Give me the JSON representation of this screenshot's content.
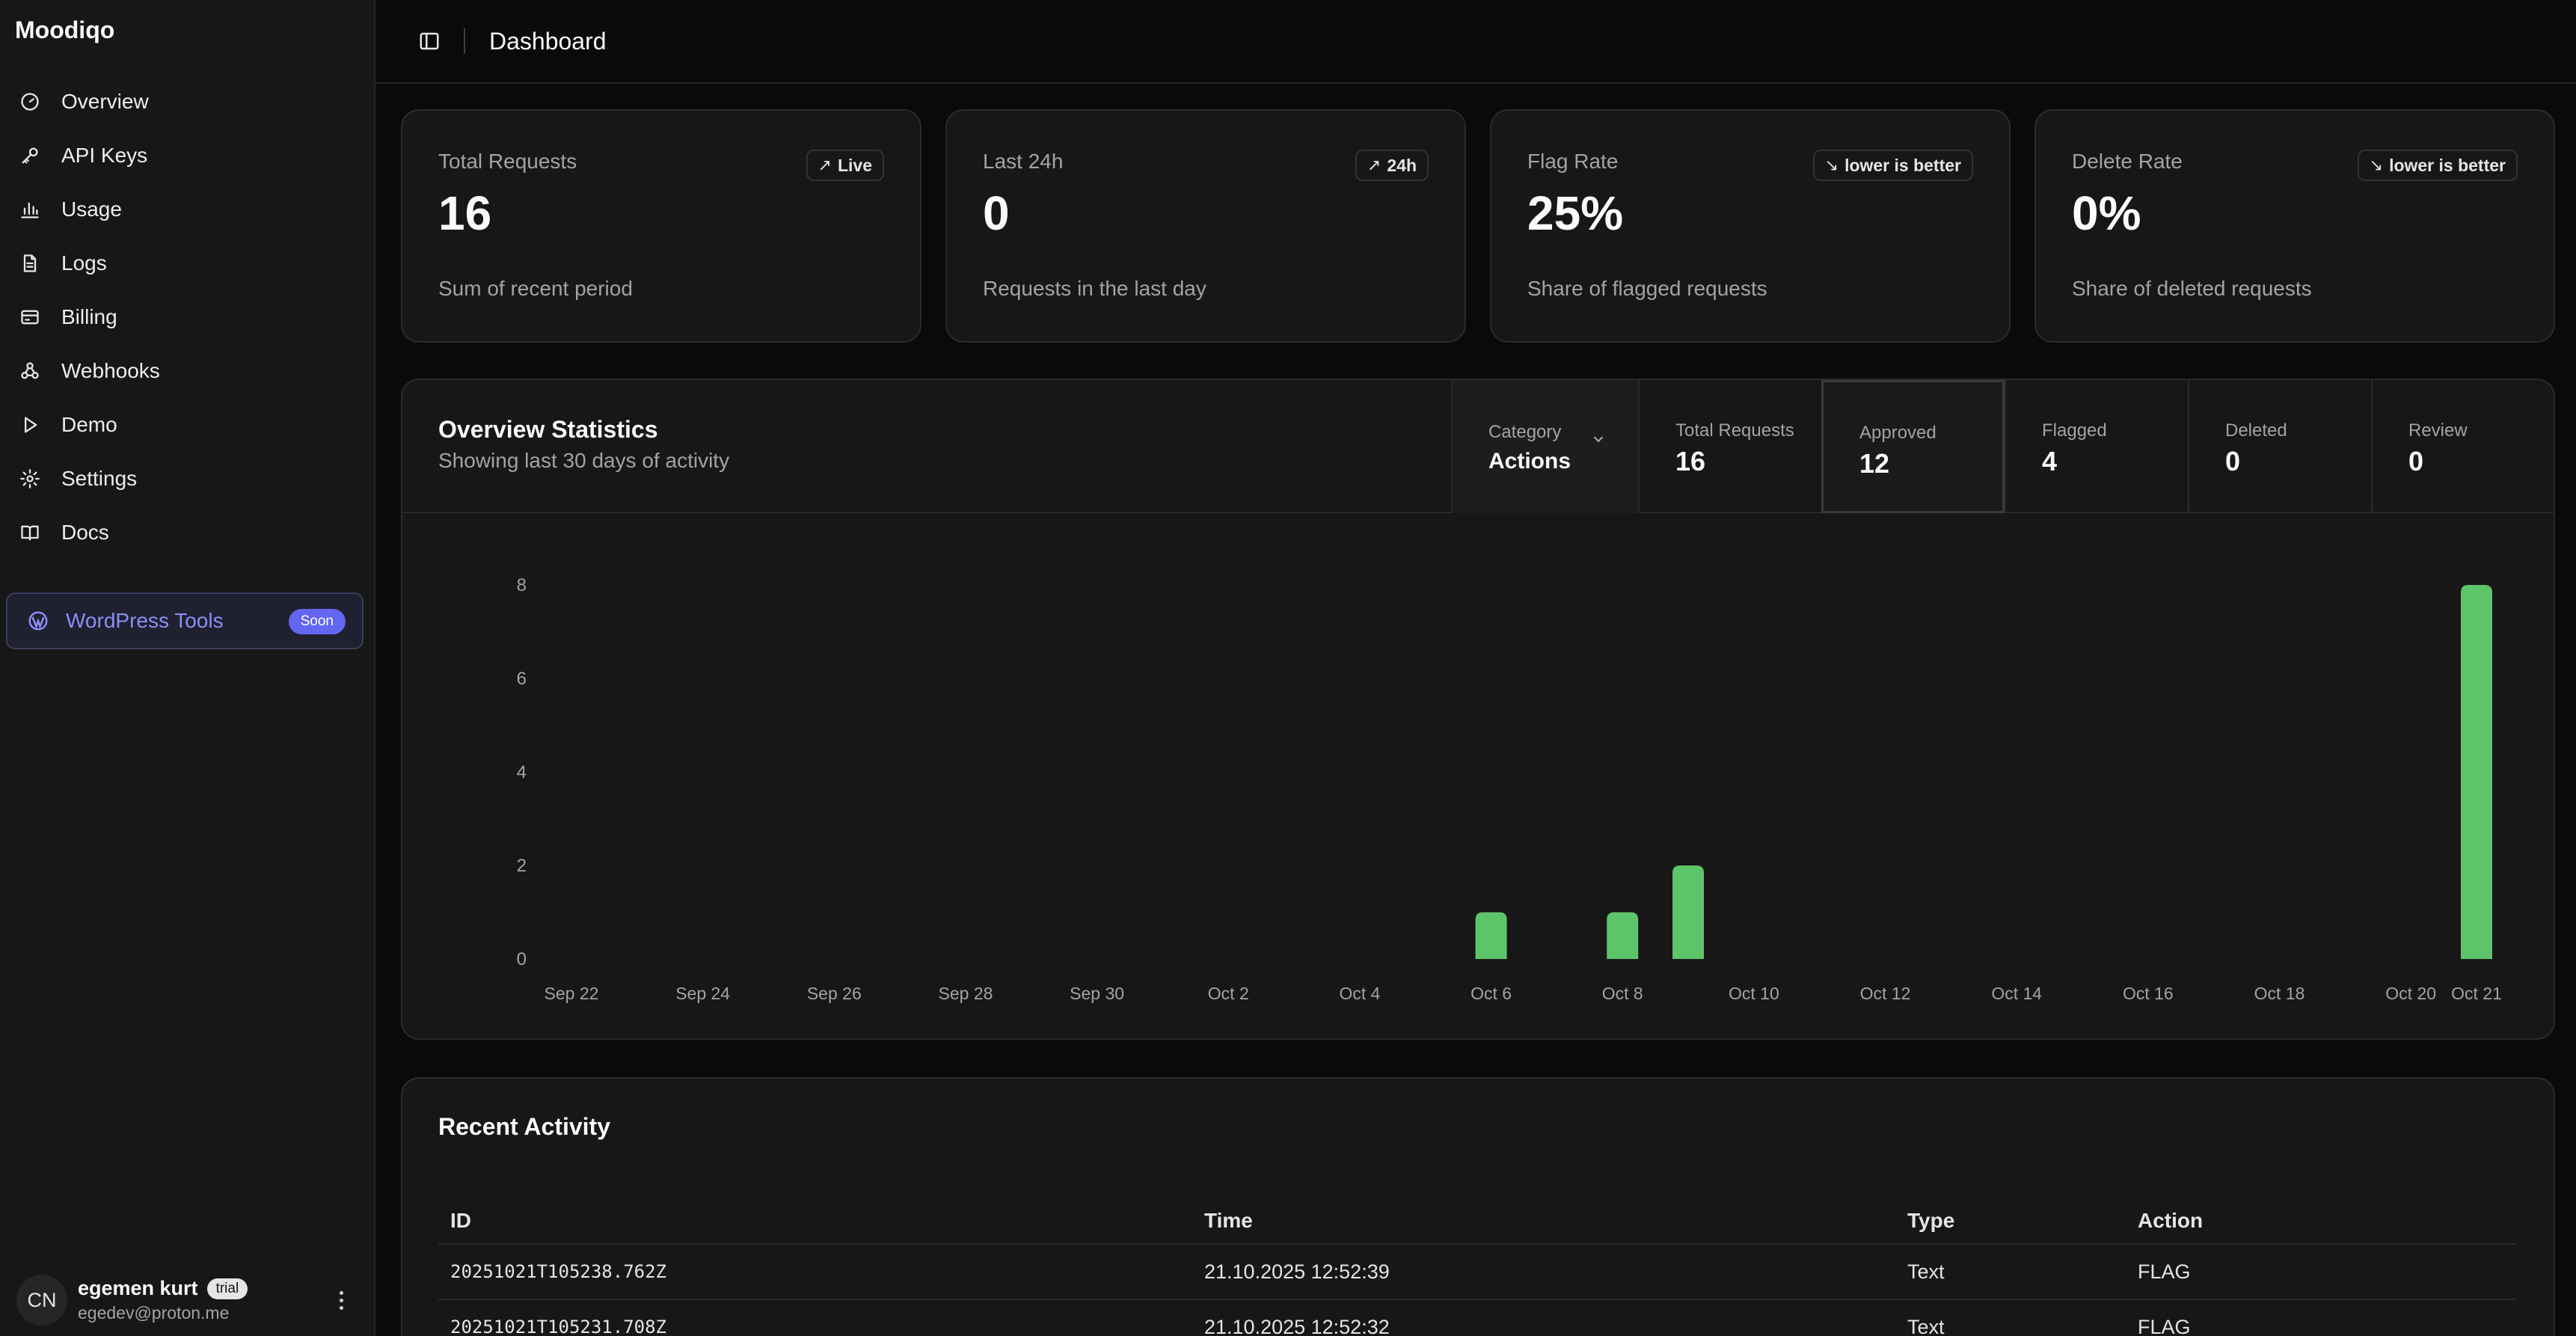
{
  "sidebar": {
    "brand": "Moodiqo",
    "items": [
      {
        "label": "Overview",
        "icon": "gauge-icon"
      },
      {
        "label": "API Keys",
        "icon": "key-icon"
      },
      {
        "label": "Usage",
        "icon": "bar-chart-icon"
      },
      {
        "label": "Logs",
        "icon": "file-text-icon"
      },
      {
        "label": "Billing",
        "icon": "credit-card-icon"
      },
      {
        "label": "Webhooks",
        "icon": "webhook-icon"
      },
      {
        "label": "Demo",
        "icon": "play-icon"
      },
      {
        "label": "Settings",
        "icon": "gear-icon"
      },
      {
        "label": "Docs",
        "icon": "book-icon"
      }
    ],
    "wordpress": {
      "label": "WordPress Tools",
      "badge": "Soon",
      "icon": "wordpress-icon"
    },
    "user": {
      "initials": "CN",
      "name": "egemen kurt",
      "badge": "trial",
      "email": "egedev@proton.me"
    }
  },
  "header": {
    "title": "Dashboard"
  },
  "stats": [
    {
      "label": "Total Requests",
      "value": "16",
      "desc": "Sum of recent period",
      "badge": "Live",
      "badge_icon": "↗"
    },
    {
      "label": "Last 24h",
      "value": "0",
      "desc": "Requests in the last day",
      "badge": "24h",
      "badge_icon": "↗"
    },
    {
      "label": "Flag Rate",
      "value": "25%",
      "desc": "Share of flagged requests",
      "badge": "lower is better",
      "badge_icon": "↘"
    },
    {
      "label": "Delete Rate",
      "value": "0%",
      "desc": "Share of deleted requests",
      "badge": "lower is better",
      "badge_icon": "↘"
    }
  ],
  "overview": {
    "title": "Overview Statistics",
    "subtitle": "Showing last 30 days of activity",
    "category_label": "Category",
    "category_value": "Actions",
    "metrics": [
      {
        "label": "Total Requests",
        "value": "16"
      },
      {
        "label": "Approved",
        "value": "12"
      },
      {
        "label": "Flagged",
        "value": "4"
      },
      {
        "label": "Deleted",
        "value": "0"
      },
      {
        "label": "Review",
        "value": "0"
      }
    ]
  },
  "chart_data": {
    "type": "bar",
    "x": [
      "Sep 22",
      "Sep 23",
      "Sep 24",
      "Sep 25",
      "Sep 26",
      "Sep 27",
      "Sep 28",
      "Sep 29",
      "Sep 30",
      "Oct 1",
      "Oct 2",
      "Oct 3",
      "Oct 4",
      "Oct 5",
      "Oct 6",
      "Oct 7",
      "Oct 8",
      "Oct 9",
      "Oct 10",
      "Oct 11",
      "Oct 12",
      "Oct 13",
      "Oct 14",
      "Oct 15",
      "Oct 16",
      "Oct 17",
      "Oct 18",
      "Oct 19",
      "Oct 20",
      "Oct 21"
    ],
    "values": [
      0,
      0,
      0,
      0,
      0,
      0,
      0,
      0,
      0,
      0,
      0,
      0,
      0,
      0,
      1,
      0,
      1,
      2,
      0,
      0,
      0,
      0,
      0,
      0,
      0,
      0,
      0,
      0,
      0,
      8
    ],
    "tick_labels": [
      "Sep 22",
      "Sep 24",
      "Sep 26",
      "Sep 28",
      "Sep 30",
      "Oct 2",
      "Oct 4",
      "Oct 6",
      "Oct 8",
      "Oct 10",
      "Oct 12",
      "Oct 14",
      "Oct 16",
      "Oct 18",
      "Oct 20",
      "Oct 21"
    ],
    "yticks": [
      0,
      2,
      4,
      6,
      8
    ],
    "ylim": [
      0,
      8
    ],
    "color": "#5ec46a",
    "grid": false,
    "legend": "none"
  },
  "recent": {
    "title": "Recent Activity",
    "columns": [
      "ID",
      "Time",
      "Type",
      "Action"
    ],
    "rows": [
      [
        "20251021T105238.762Z",
        "21.10.2025 12:52:39",
        "Text",
        "FLAG"
      ],
      [
        "20251021T105231.708Z",
        "21.10.2025 12:52:32",
        "Text",
        "FLAG"
      ]
    ]
  }
}
